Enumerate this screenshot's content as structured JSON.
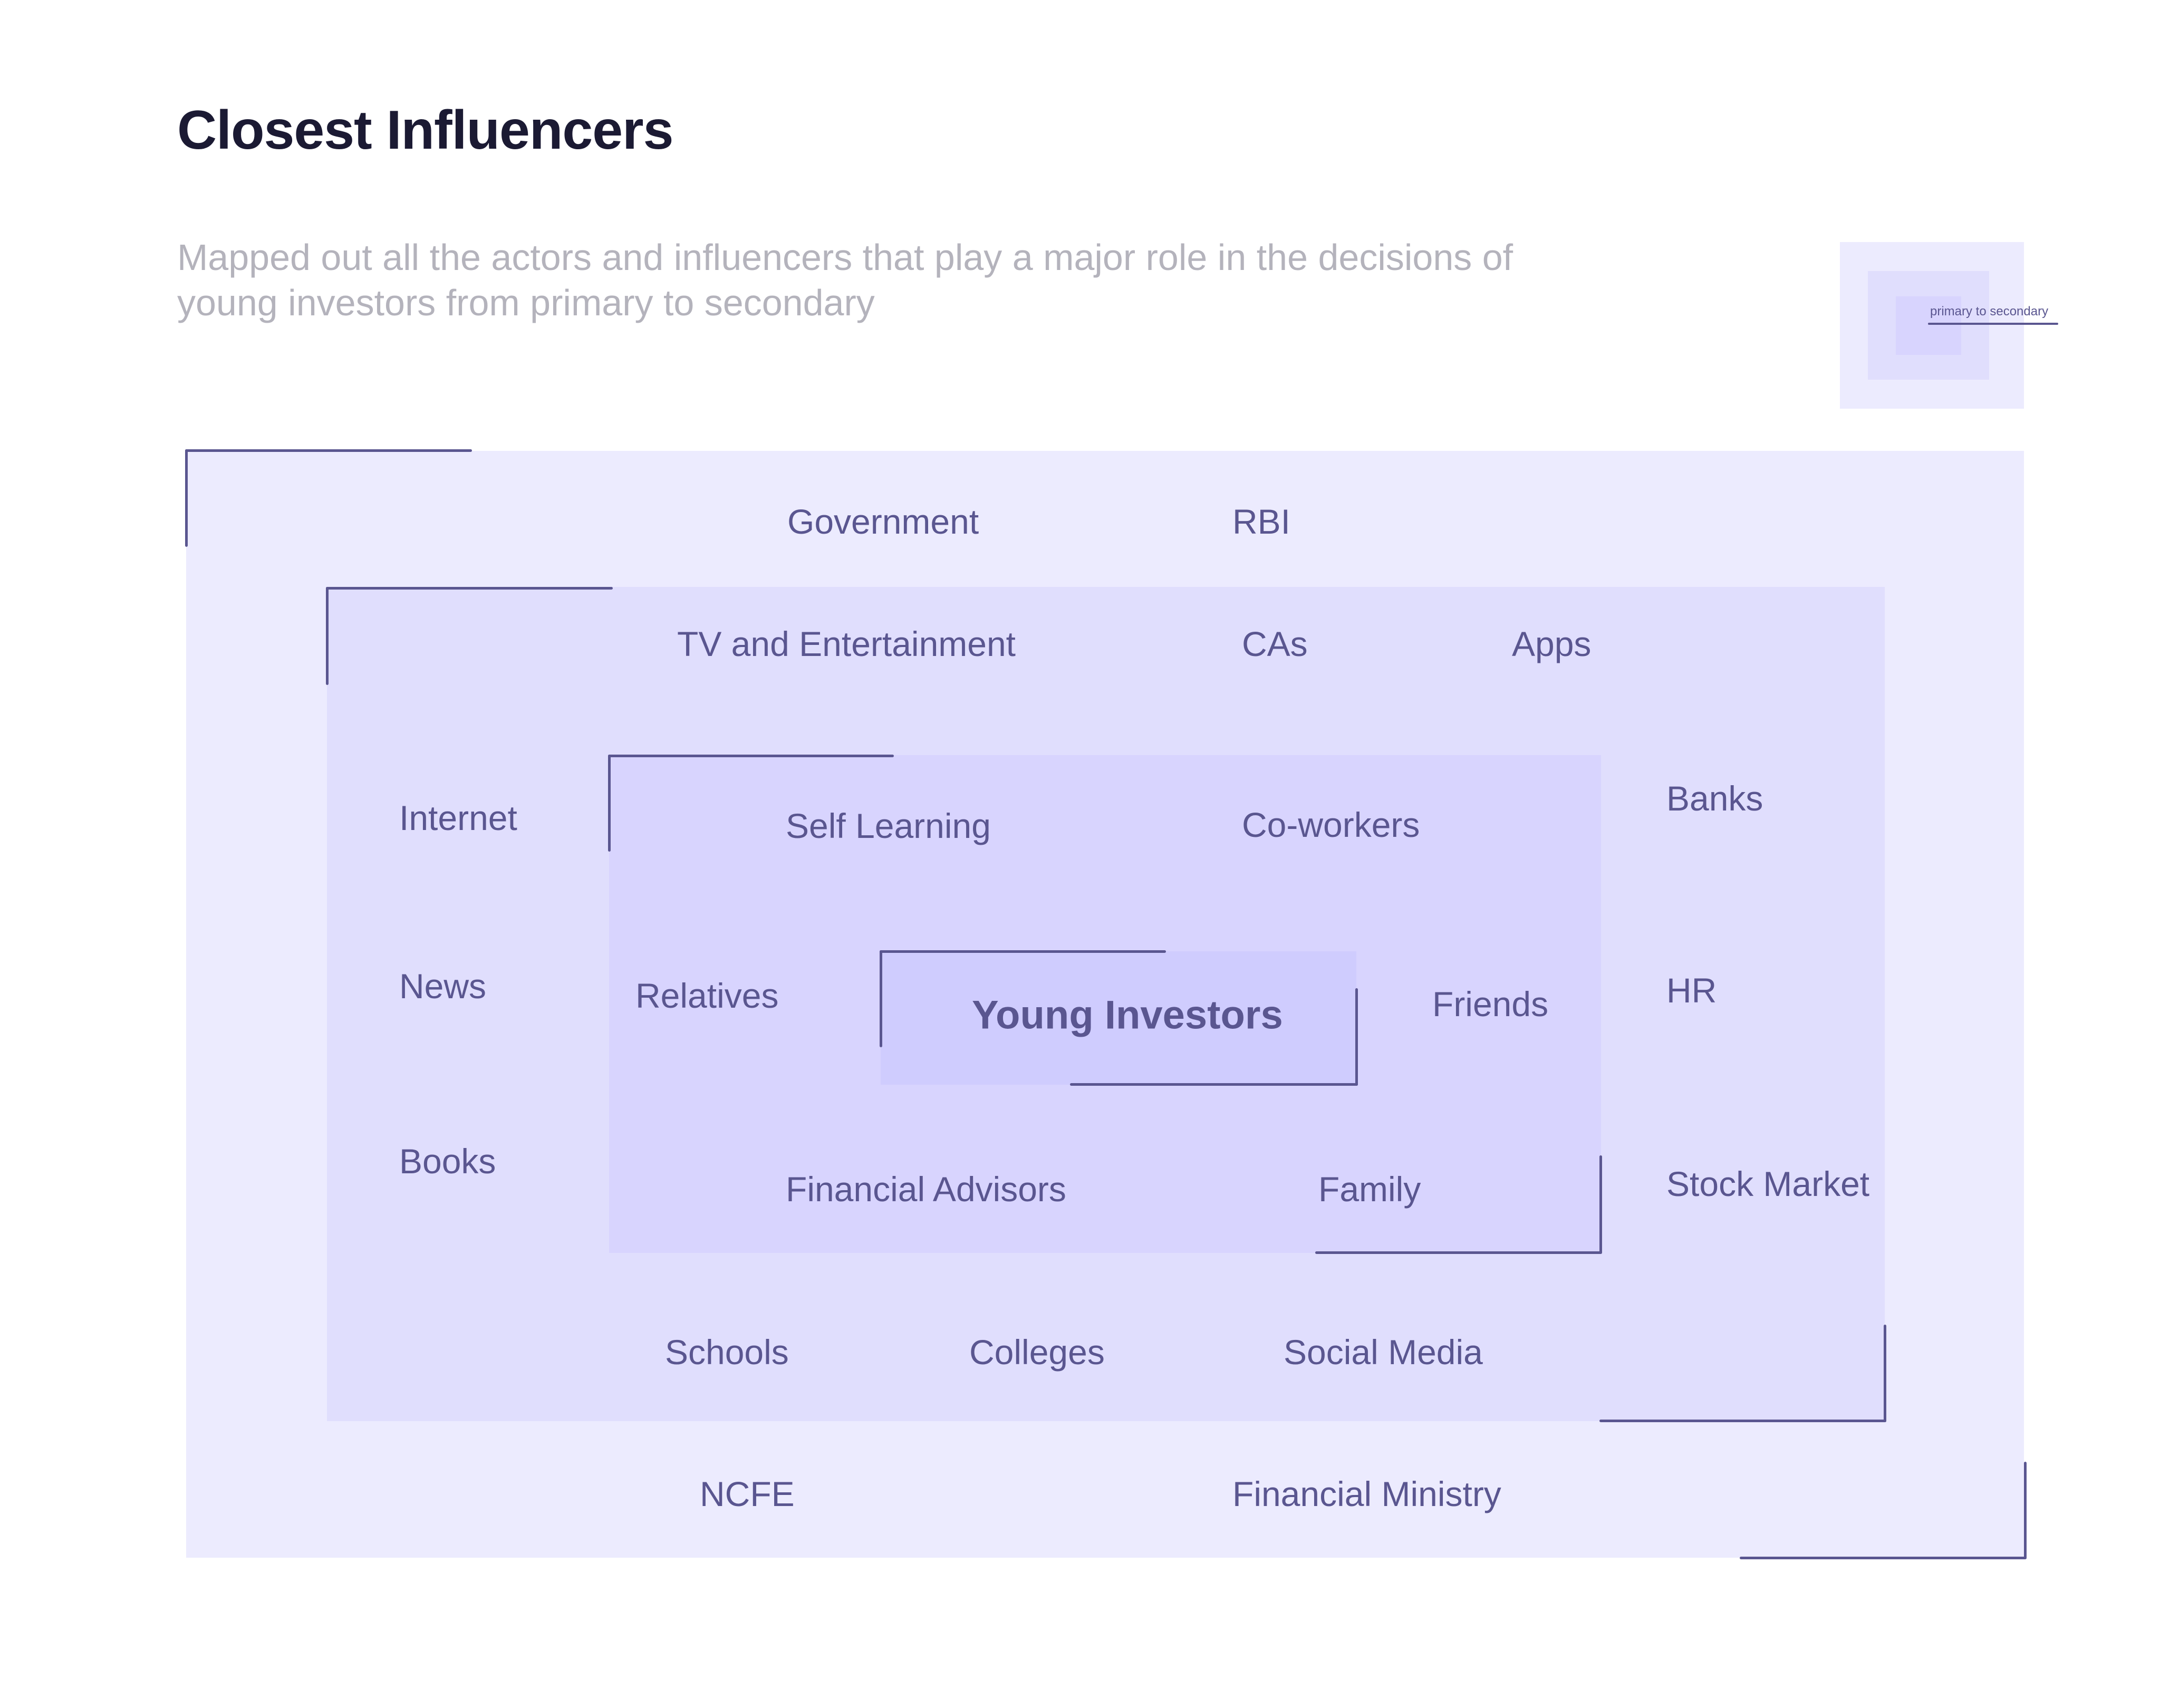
{
  "header": {
    "title": "Closest Influencers",
    "subtitle": "Mapped out all the actors and influencers that play a major role in the decisions of young investors from primary to secondary"
  },
  "legend": {
    "label": "primary to secondary"
  },
  "colors": {
    "ring_outer": "#ecebfe",
    "ring_secondary": "#e0defd",
    "ring_primary": "#d8d4fe",
    "core": "#cfccfe",
    "accent": "#5a5690"
  },
  "diagram": {
    "core": "Young Investors",
    "primary": [
      "Self Learning",
      "Co-workers",
      "Relatives",
      "Friends",
      "Financial Advisors",
      "Family"
    ],
    "secondary": [
      "TV and Entertainment",
      "CAs",
      "Apps",
      "Internet",
      "Banks",
      "News",
      "HR",
      "Books",
      "Stock Market",
      "Schools",
      "Colleges",
      "Social Media"
    ],
    "outer": [
      "Government",
      "RBI",
      "NCFE",
      "Financial Ministry"
    ]
  }
}
